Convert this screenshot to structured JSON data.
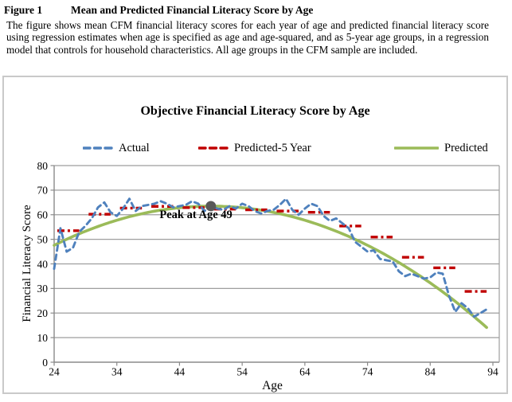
{
  "caption": {
    "label": "Figure 1",
    "title": "Mean and Predicted Financial Literacy Score by Age",
    "body": "The figure shows mean CFM financial literacy scores for each year of age and predicted financial literacy score using regression estimates when age is specified as age and age-squared, and as 5-year age groups, in a regression model that controls for household characteristics.  All age groups in the CFM sample are included."
  },
  "chart_data": {
    "type": "line",
    "title": "Objective Financial Literacy Score by Age",
    "xlabel": "Age",
    "ylabel": "Financial Literacy Score",
    "xlim": [
      24,
      95
    ],
    "ylim": [
      0,
      80
    ],
    "x_ticks": [
      24,
      34,
      44,
      54,
      64,
      74,
      84,
      94
    ],
    "y_ticks": [
      0,
      10,
      20,
      30,
      40,
      50,
      60,
      70,
      80
    ],
    "grid": true,
    "legend_position": "top",
    "colors": {
      "gridline": "#9e9e9e",
      "axis": "#8a8a8a",
      "box_border": "#c9c9c9",
      "peak_dot": "#595959"
    },
    "series": [
      {
        "name": "Actual",
        "color": "#4F81BD",
        "style": "dashed",
        "x_start": 24,
        "x_step": 1,
        "values": [
          38,
          54.5,
          45,
          46.5,
          53,
          55.5,
          58.5,
          63,
          65,
          61,
          59.5,
          62.5,
          66.5,
          61.5,
          63.5,
          64,
          64.5,
          65.5,
          64.5,
          63,
          63.5,
          64,
          65.5,
          64.5,
          61.5,
          63.5,
          62.5,
          62,
          63.5,
          62.5,
          64.5,
          63.5,
          61.5,
          60.5,
          61.5,
          62,
          64,
          66.5,
          62,
          60,
          62.5,
          64.5,
          63.5,
          59.5,
          57.5,
          58.5,
          56.5,
          54.5,
          49,
          47,
          45,
          45.5,
          42,
          41.5,
          41,
          37,
          35,
          36,
          35,
          34,
          34.5,
          36.5,
          36,
          27,
          20.5,
          24,
          22,
          18.5,
          20,
          21.5
        ]
      },
      {
        "name": "Predicted-5 Year",
        "color": "#C00000",
        "style": "dash-dot",
        "segments": [
          {
            "x1": 24.5,
            "x2": 28,
            "y": 53.5
          },
          {
            "x1": 29.5,
            "x2": 33,
            "y": 60.2
          },
          {
            "x1": 34.5,
            "x2": 38,
            "y": 62.7
          },
          {
            "x1": 39.5,
            "x2": 43,
            "y": 63.4
          },
          {
            "x1": 44.5,
            "x2": 48,
            "y": 62.9
          },
          {
            "x1": 49.5,
            "x2": 53,
            "y": 62.3
          },
          {
            "x1": 54.5,
            "x2": 58,
            "y": 62.0
          },
          {
            "x1": 59.5,
            "x2": 63,
            "y": 61.5
          },
          {
            "x1": 64.5,
            "x2": 68,
            "y": 61.0
          },
          {
            "x1": 69.5,
            "x2": 73,
            "y": 55.4
          },
          {
            "x1": 74.5,
            "x2": 78,
            "y": 50.9
          },
          {
            "x1": 79.5,
            "x2": 83,
            "y": 42.7
          },
          {
            "x1": 84.5,
            "x2": 88,
            "y": 38.4
          },
          {
            "x1": 89.5,
            "x2": 93,
            "y": 28.8
          }
        ]
      },
      {
        "name": "Predicted",
        "color": "#9BBB59",
        "style": "solid",
        "model": "quadratic",
        "peak_age": 49,
        "peak_value": 63.5,
        "curvature": 0.0255,
        "age_start": 24,
        "age_end": 93
      }
    ],
    "annotation": {
      "text": "Peak at Age 49",
      "age": 49,
      "value": 63.5
    }
  }
}
